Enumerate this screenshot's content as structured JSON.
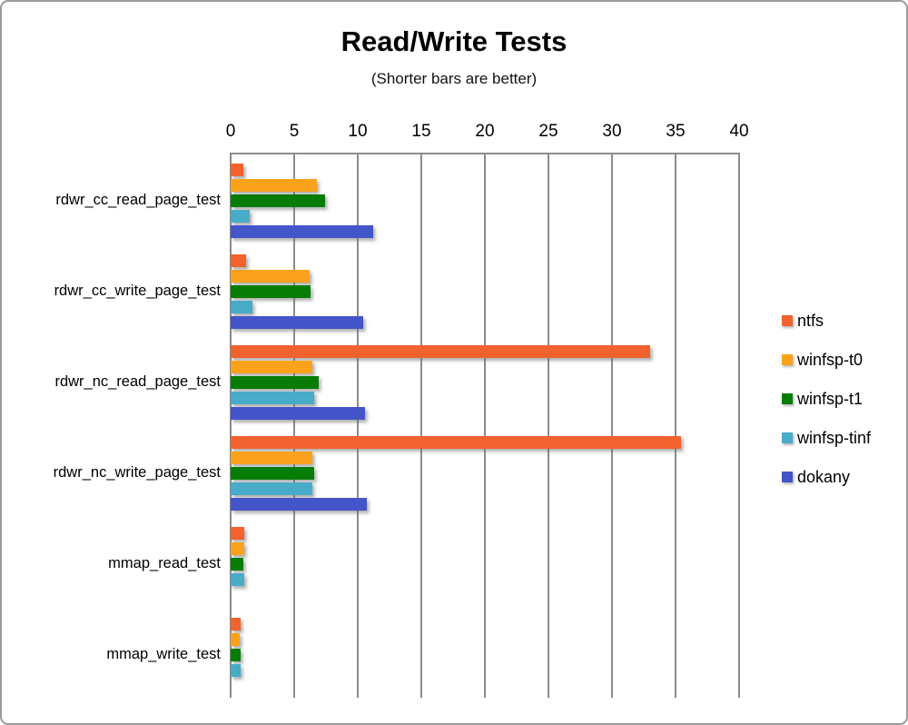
{
  "title": "Read/Write Tests",
  "subtitle": "(Shorter bars are better)",
  "chart_data": {
    "type": "bar",
    "orientation": "horizontal",
    "title": "Read/Write Tests",
    "subtitle": "(Shorter bars are better)",
    "xlabel": "",
    "ylabel": "",
    "xlim": [
      0,
      40
    ],
    "xticks": [
      0,
      5,
      10,
      15,
      20,
      25,
      30,
      35,
      40
    ],
    "grid": true,
    "legend_position": "right",
    "categories": [
      "rdwr_cc_read_page_test",
      "rdwr_cc_write_page_test",
      "rdwr_nc_read_page_test",
      "rdwr_nc_write_page_test",
      "mmap_read_test",
      "mmap_write_test"
    ],
    "series": [
      {
        "name": "ntfs",
        "color": "#f2622e",
        "values": [
          1.0,
          1.2,
          33.0,
          35.4,
          1.1,
          0.8
        ]
      },
      {
        "name": "winfsp-t0",
        "color": "#faa21c",
        "values": [
          6.8,
          6.2,
          6.4,
          6.4,
          1.1,
          0.7
        ]
      },
      {
        "name": "winfsp-t1",
        "color": "#077d07",
        "values": [
          7.4,
          6.3,
          6.9,
          6.6,
          1.0,
          0.8
        ]
      },
      {
        "name": "winfsp-tinf",
        "color": "#48abc8",
        "values": [
          1.5,
          1.7,
          6.6,
          6.4,
          1.1,
          0.8
        ]
      },
      {
        "name": "dokany",
        "color": "#4355c9",
        "values": [
          11.2,
          10.4,
          10.6,
          10.7,
          0,
          0
        ]
      }
    ]
  }
}
